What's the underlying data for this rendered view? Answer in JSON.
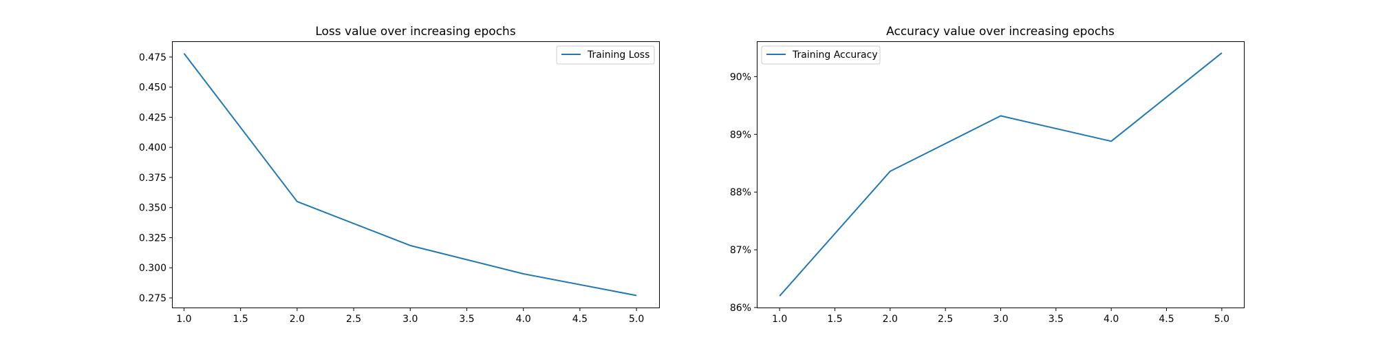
{
  "chart_data": [
    {
      "type": "line",
      "title": "Loss value over increasing epochs",
      "xlabel": "",
      "ylabel": "",
      "x": [
        1.0,
        2.0,
        3.0,
        4.0,
        5.0
      ],
      "series": [
        {
          "name": "Training Loss",
          "values": [
            0.478,
            0.355,
            0.3185,
            0.295,
            0.277
          ],
          "color": "#1f77b4"
        }
      ],
      "xlim": [
        0.9,
        5.2
      ],
      "ylim": [
        0.267,
        0.4875
      ],
      "xticks": [
        1.0,
        1.5,
        2.0,
        2.5,
        3.0,
        3.5,
        4.0,
        4.5,
        5.0
      ],
      "xtick_labels": [
        "1.0",
        "1.5",
        "2.0",
        "2.5",
        "3.0",
        "3.5",
        "4.0",
        "4.5",
        "5.0"
      ],
      "yticks": [
        0.275,
        0.3,
        0.325,
        0.35,
        0.375,
        0.4,
        0.425,
        0.45,
        0.475
      ],
      "ytick_labels": [
        "0.275",
        "0.300",
        "0.325",
        "0.350",
        "0.375",
        "0.400",
        "0.425",
        "0.450",
        "0.475"
      ],
      "legend": "top-right",
      "grid": false
    },
    {
      "type": "line",
      "title": "Accuracy value over increasing epochs",
      "xlabel": "",
      "ylabel": "",
      "x": [
        1.0,
        2.0,
        3.0,
        4.0,
        5.0
      ],
      "series": [
        {
          "name": "Training Accuracy",
          "values": [
            0.862,
            0.8836,
            0.8932,
            0.8888,
            0.9041
          ],
          "color": "#1f77b4"
        }
      ],
      "xlim": [
        0.8,
        5.2
      ],
      "ylim": [
        0.86,
        0.906
      ],
      "xticks": [
        1.0,
        1.5,
        2.0,
        2.5,
        3.0,
        3.5,
        4.0,
        4.5,
        5.0
      ],
      "xtick_labels": [
        "1.0",
        "1.5",
        "2.0",
        "2.5",
        "3.0",
        "3.5",
        "4.0",
        "4.5",
        "5.0"
      ],
      "yticks": [
        0.86,
        0.87,
        0.88,
        0.89,
        0.9
      ],
      "ytick_labels": [
        "86%",
        "87%",
        "88%",
        "89%",
        "90%"
      ],
      "legend": "top-left",
      "grid": false
    }
  ]
}
